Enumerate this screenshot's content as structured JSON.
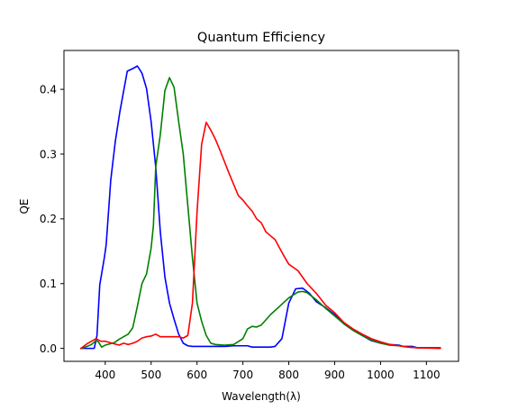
{
  "chart_data": {
    "type": "line",
    "title": "Quantum Efficiency",
    "xlabel": "Wavelength(λ)",
    "ylabel": "QE",
    "xlim": [
      310,
      1170
    ],
    "ylim": [
      -0.02,
      0.46
    ],
    "xticks": [
      400,
      500,
      600,
      700,
      800,
      900,
      1000,
      1100
    ],
    "yticks": [
      0.0,
      0.1,
      0.2,
      0.3,
      0.4
    ],
    "ytick_labels": [
      "0.0",
      "0.1",
      "0.2",
      "0.3",
      "0.4"
    ],
    "grid": false,
    "series": [
      {
        "color": "#0000ff",
        "points": [
          [
            347,
            0.0
          ],
          [
            360,
            0.0
          ],
          [
            368,
            0.0
          ],
          [
            376,
            0.0
          ],
          [
            382,
            0.02
          ],
          [
            388,
            0.098
          ],
          [
            398,
            0.14
          ],
          [
            402,
            0.16
          ],
          [
            412,
            0.26
          ],
          [
            422,
            0.32
          ],
          [
            432,
            0.366
          ],
          [
            448,
            0.428
          ],
          [
            460,
            0.432
          ],
          [
            470,
            0.436
          ],
          [
            480,
            0.425
          ],
          [
            490,
            0.401
          ],
          [
            500,
            0.35
          ],
          [
            510,
            0.28
          ],
          [
            520,
            0.18
          ],
          [
            530,
            0.11
          ],
          [
            540,
            0.07
          ],
          [
            550,
            0.045
          ],
          [
            560,
            0.022
          ],
          [
            570,
            0.008
          ],
          [
            580,
            0.004
          ],
          [
            590,
            0.003
          ],
          [
            620,
            0.003
          ],
          [
            660,
            0.003
          ],
          [
            680,
            0.004
          ],
          [
            710,
            0.004
          ],
          [
            720,
            0.002
          ],
          [
            740,
            0.002
          ],
          [
            760,
            0.002
          ],
          [
            770,
            0.003
          ],
          [
            785,
            0.015
          ],
          [
            800,
            0.07
          ],
          [
            815,
            0.092
          ],
          [
            830,
            0.093
          ],
          [
            845,
            0.085
          ],
          [
            860,
            0.072
          ],
          [
            880,
            0.063
          ],
          [
            900,
            0.052
          ],
          [
            920,
            0.038
          ],
          [
            940,
            0.028
          ],
          [
            960,
            0.02
          ],
          [
            980,
            0.012
          ],
          [
            1000,
            0.008
          ],
          [
            1020,
            0.006
          ],
          [
            1040,
            0.005
          ],
          [
            1050,
            0.003
          ],
          [
            1070,
            0.003
          ],
          [
            1080,
            0.001
          ],
          [
            1100,
            0.001
          ],
          [
            1130,
            0.001
          ]
        ]
      },
      {
        "color": "#008000",
        "points": [
          [
            347,
            0.0
          ],
          [
            360,
            0.003
          ],
          [
            370,
            0.006
          ],
          [
            380,
            0.012
          ],
          [
            385,
            0.01
          ],
          [
            392,
            0.002
          ],
          [
            400,
            0.005
          ],
          [
            410,
            0.007
          ],
          [
            420,
            0.009
          ],
          [
            430,
            0.014
          ],
          [
            440,
            0.018
          ],
          [
            450,
            0.022
          ],
          [
            460,
            0.032
          ],
          [
            470,
            0.065
          ],
          [
            480,
            0.1
          ],
          [
            490,
            0.115
          ],
          [
            500,
            0.155
          ],
          [
            505,
            0.19
          ],
          [
            510,
            0.28
          ],
          [
            520,
            0.33
          ],
          [
            530,
            0.398
          ],
          [
            540,
            0.418
          ],
          [
            550,
            0.403
          ],
          [
            560,
            0.35
          ],
          [
            570,
            0.3
          ],
          [
            580,
            0.22
          ],
          [
            590,
            0.14
          ],
          [
            600,
            0.07
          ],
          [
            610,
            0.042
          ],
          [
            620,
            0.02
          ],
          [
            630,
            0.008
          ],
          [
            640,
            0.006
          ],
          [
            660,
            0.005
          ],
          [
            680,
            0.006
          ],
          [
            700,
            0.015
          ],
          [
            710,
            0.03
          ],
          [
            720,
            0.034
          ],
          [
            730,
            0.033
          ],
          [
            740,
            0.036
          ],
          [
            760,
            0.052
          ],
          [
            780,
            0.065
          ],
          [
            800,
            0.078
          ],
          [
            820,
            0.087
          ],
          [
            830,
            0.088
          ],
          [
            840,
            0.086
          ],
          [
            860,
            0.075
          ],
          [
            880,
            0.062
          ],
          [
            900,
            0.05
          ],
          [
            920,
            0.038
          ],
          [
            940,
            0.028
          ],
          [
            960,
            0.02
          ],
          [
            980,
            0.013
          ],
          [
            1000,
            0.008
          ],
          [
            1020,
            0.005
          ],
          [
            1040,
            0.004
          ],
          [
            1060,
            0.002
          ],
          [
            1080,
            0.001
          ],
          [
            1130,
            0.001
          ]
        ]
      },
      {
        "color": "#ff0000",
        "points": [
          [
            347,
            0.0
          ],
          [
            360,
            0.007
          ],
          [
            370,
            0.011
          ],
          [
            380,
            0.015
          ],
          [
            390,
            0.011
          ],
          [
            400,
            0.011
          ],
          [
            410,
            0.009
          ],
          [
            420,
            0.007
          ],
          [
            430,
            0.005
          ],
          [
            440,
            0.008
          ],
          [
            450,
            0.006
          ],
          [
            460,
            0.008
          ],
          [
            470,
            0.011
          ],
          [
            480,
            0.016
          ],
          [
            490,
            0.018
          ],
          [
            500,
            0.019
          ],
          [
            510,
            0.022
          ],
          [
            520,
            0.018
          ],
          [
            540,
            0.018
          ],
          [
            560,
            0.018
          ],
          [
            570,
            0.016
          ],
          [
            580,
            0.02
          ],
          [
            590,
            0.07
          ],
          [
            600,
            0.21
          ],
          [
            610,
            0.315
          ],
          [
            620,
            0.349
          ],
          [
            630,
            0.337
          ],
          [
            640,
            0.323
          ],
          [
            650,
            0.306
          ],
          [
            660,
            0.288
          ],
          [
            670,
            0.27
          ],
          [
            680,
            0.253
          ],
          [
            690,
            0.236
          ],
          [
            700,
            0.229
          ],
          [
            710,
            0.22
          ],
          [
            720,
            0.212
          ],
          [
            730,
            0.2
          ],
          [
            740,
            0.194
          ],
          [
            750,
            0.18
          ],
          [
            760,
            0.174
          ],
          [
            770,
            0.168
          ],
          [
            780,
            0.155
          ],
          [
            790,
            0.142
          ],
          [
            800,
            0.13
          ],
          [
            820,
            0.12
          ],
          [
            840,
            0.1
          ],
          [
            860,
            0.085
          ],
          [
            880,
            0.067
          ],
          [
            900,
            0.055
          ],
          [
            920,
            0.04
          ],
          [
            940,
            0.03
          ],
          [
            960,
            0.022
          ],
          [
            980,
            0.015
          ],
          [
            1000,
            0.01
          ],
          [
            1020,
            0.006
          ],
          [
            1040,
            0.004
          ],
          [
            1060,
            0.002
          ],
          [
            1080,
            0.001
          ],
          [
            1130,
            0.0
          ]
        ]
      }
    ]
  }
}
